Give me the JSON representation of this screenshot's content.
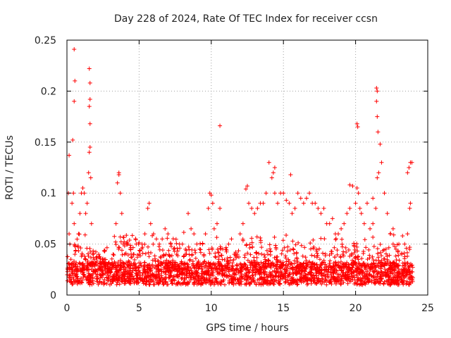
{
  "chart_data": {
    "type": "scatter",
    "title": "Day 228 of 2024, Rate Of TEC Index for receiver ccsn",
    "xlabel": "GPS time / hours",
    "ylabel": "ROTI / TECUs",
    "xlim": [
      0,
      25
    ],
    "ylim": [
      0,
      0.25
    ],
    "xticks": [
      0,
      5,
      10,
      15,
      20,
      25
    ],
    "xtick_labels": [
      "0",
      "5",
      "10",
      "15",
      "20",
      "25"
    ],
    "yticks": [
      0,
      0.05,
      0.1,
      0.15,
      0.2,
      0.25
    ],
    "ytick_labels": [
      "0",
      "0.05",
      "0.1",
      "0.15",
      "0.2",
      "0.25"
    ],
    "grid": true,
    "marker": "+",
    "series": [
      {
        "name": "ROTI",
        "color": "#ff0000",
        "x": [
          0.05,
          0.1,
          0.15,
          0.2,
          0.3,
          0.35,
          0.45,
          0.5,
          0.55,
          0.6,
          0.7,
          0.8,
          0.9,
          1.0,
          1.1,
          1.2,
          1.3,
          1.4,
          1.5,
          1.55,
          1.6,
          1.65,
          1.7,
          1.8,
          1.9,
          2.0,
          2.2,
          2.4,
          2.6,
          2.8,
          3.0,
          3.2,
          3.4,
          3.5,
          3.6,
          3.7,
          3.8,
          3.9,
          4.0,
          4.2,
          4.4,
          4.6,
          4.8,
          5.0,
          5.2,
          5.4,
          5.6,
          5.7,
          5.8,
          6.0,
          6.2,
          6.4,
          6.6,
          6.8,
          7.0,
          7.2,
          7.4,
          7.6,
          7.8,
          8.0,
          8.2,
          8.4,
          8.6,
          8.8,
          9.0,
          9.2,
          9.4,
          9.6,
          9.8,
          9.9,
          10.0,
          10.1,
          10.2,
          10.4,
          10.6,
          10.8,
          11.0,
          11.2,
          11.4,
          11.6,
          11.8,
          12.0,
          12.2,
          12.4,
          12.5,
          12.6,
          12.8,
          13.0,
          13.2,
          13.4,
          13.6,
          13.8,
          14.0,
          14.2,
          14.4,
          14.6,
          14.8,
          15.0,
          15.2,
          15.4,
          15.6,
          15.8,
          16.0,
          16.2,
          16.4,
          16.6,
          16.8,
          17.0,
          17.2,
          17.4,
          17.6,
          17.8,
          18.0,
          18.2,
          18.4,
          18.6,
          18.8,
          19.0,
          19.2,
          19.4,
          19.6,
          19.8,
          20.0,
          20.1,
          20.2,
          20.3,
          20.4,
          20.6,
          20.8,
          21.0,
          21.2,
          21.4,
          21.5,
          21.6,
          21.7,
          21.8,
          22.0,
          22.2,
          22.4,
          22.6,
          22.8,
          23.0,
          23.2,
          23.4,
          23.6,
          23.7,
          23.8,
          23.9,
          0.5,
          0.55,
          0.5,
          1.55,
          1.6,
          1.6,
          1.55,
          1.6,
          10.6,
          14.3,
          14.4,
          15.5,
          20.1,
          20.15,
          21.45,
          21.5,
          21.45,
          21.5,
          21.55,
          22.6,
          23.6,
          23.8,
          23.75,
          0.15,
          0.4,
          3.6,
          19.6,
          21.2
        ],
        "y": [
          0.025,
          0.1,
          0.06,
          0.05,
          0.03,
          0.09,
          0.1,
          0.07,
          0.04,
          0.03,
          0.025,
          0.06,
          0.08,
          0.1,
          0.105,
          0.1,
          0.08,
          0.09,
          0.12,
          0.14,
          0.145,
          0.115,
          0.07,
          0.04,
          0.035,
          0.03,
          0.04,
          0.03,
          0.035,
          0.03,
          0.03,
          0.04,
          0.07,
          0.11,
          0.12,
          0.1,
          0.08,
          0.05,
          0.04,
          0.05,
          0.045,
          0.04,
          0.05,
          0.04,
          0.05,
          0.06,
          0.085,
          0.09,
          0.07,
          0.06,
          0.055,
          0.05,
          0.055,
          0.065,
          0.06,
          0.05,
          0.045,
          0.04,
          0.05,
          0.05,
          0.04,
          0.08,
          0.065,
          0.06,
          0.05,
          0.045,
          0.05,
          0.06,
          0.085,
          0.1,
          0.098,
          0.09,
          0.065,
          0.07,
          0.085,
          0.045,
          0.045,
          0.05,
          0.055,
          0.04,
          0.04,
          0.06,
          0.07,
          0.104,
          0.107,
          0.09,
          0.085,
          0.08,
          0.085,
          0.09,
          0.09,
          0.1,
          0.13,
          0.115,
          0.1,
          0.09,
          0.1,
          0.1,
          0.093,
          0.09,
          0.08,
          0.085,
          0.1,
          0.095,
          0.09,
          0.095,
          0.1,
          0.09,
          0.09,
          0.085,
          0.08,
          0.085,
          0.07,
          0.07,
          0.075,
          0.06,
          0.06,
          0.065,
          0.07,
          0.08,
          0.085,
          0.107,
          0.09,
          0.105,
          0.1,
          0.085,
          0.08,
          0.07,
          0.09,
          0.065,
          0.07,
          0.085,
          0.115,
          0.12,
          0.148,
          0.13,
          0.1,
          0.08,
          0.06,
          0.05,
          0.045,
          0.05,
          0.04,
          0.05,
          0.06,
          0.125,
          0.09,
          0.13,
          0.241,
          0.21,
          0.19,
          0.222,
          0.208,
          0.192,
          0.185,
          0.168,
          0.166,
          0.12,
          0.125,
          0.118,
          0.168,
          0.165,
          0.203,
          0.2,
          0.19,
          0.175,
          0.16,
          0.065,
          0.12,
          0.13,
          0.085,
          0.137,
          0.152,
          0.118,
          0.108,
          0.095
        ]
      }
    ]
  }
}
